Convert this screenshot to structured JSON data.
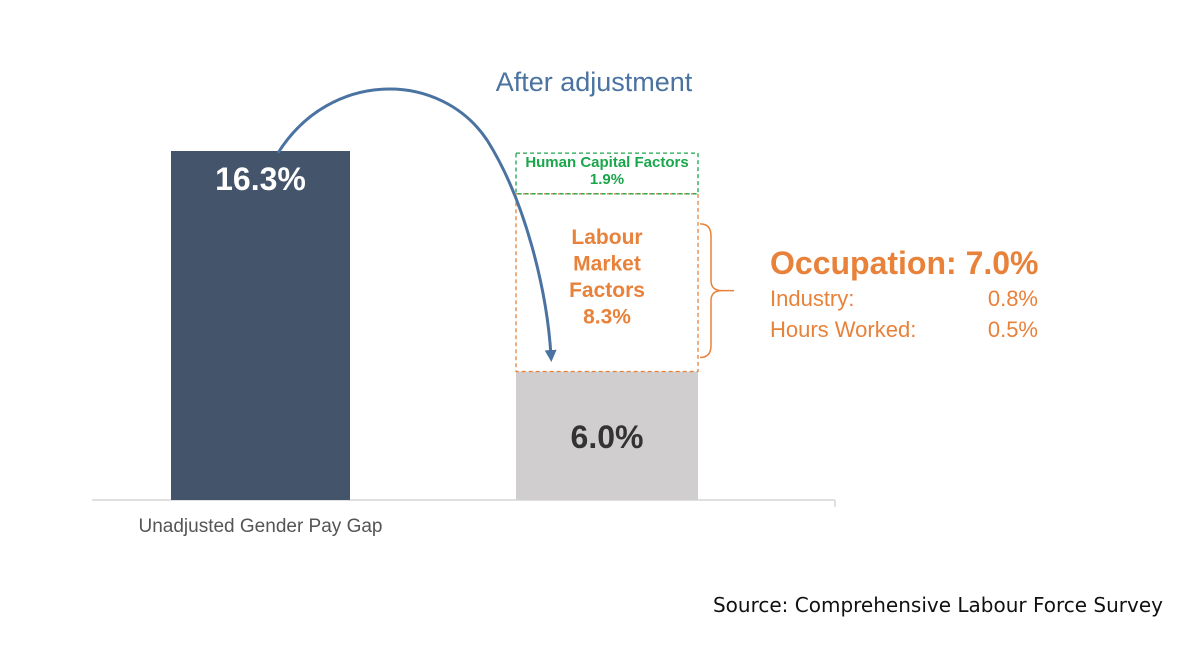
{
  "chart_data": {
    "type": "bar",
    "title": "",
    "ylim": [
      0,
      16.3
    ],
    "categories": [
      "Unadjusted Gender Pay Gap",
      ""
    ],
    "bars": [
      {
        "category": "Unadjusted Gender Pay Gap",
        "value": 16.3,
        "label": "16.3%",
        "color": "#44546a"
      },
      {
        "category": "",
        "value": 6.0,
        "label": "6.0%",
        "color": "#d0cece"
      }
    ],
    "segments": [
      {
        "name": "Labour Market Factors",
        "value": 8.3,
        "label_lines": [
          "Labour",
          "Market",
          "Factors",
          "8.3%"
        ],
        "color": "#e8823a",
        "style": "dashed"
      },
      {
        "name": "Human Capital Factors",
        "value": 1.9,
        "label_lines": [
          "Human Capital Factors",
          "1.9%"
        ],
        "color": "#1aa64a",
        "style": "dashed"
      }
    ],
    "annotations": {
      "arrow_label": "After adjustment",
      "breakdown": {
        "heading": "Occupation: 7.0%",
        "rows": [
          {
            "label": "Industry:",
            "value": "0.8%"
          },
          {
            "label": "Hours Worked:",
            "value": "0.5%"
          }
        ]
      }
    }
  },
  "source": "Source: Comprehensive Labour Force Survey",
  "colors": {
    "dark_bar": "#44546a",
    "grey_bar": "#d0cece",
    "orange": "#e8823a",
    "green": "#1aa64a",
    "arrow": "#4a73a1"
  }
}
